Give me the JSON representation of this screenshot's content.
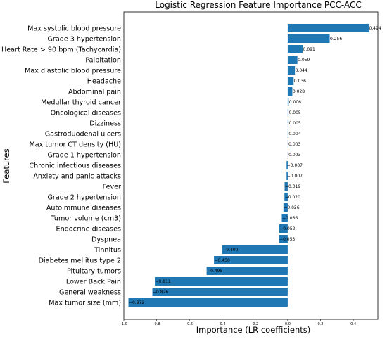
{
  "chart_data": {
    "type": "bar",
    "orientation": "horizontal",
    "title": "Logistic Regression Feature Importance PCC-ACC",
    "xlabel": "Importance (LR coefficients)",
    "ylabel": "Features",
    "xlim": [
      -1.0,
      0.55
    ],
    "xticks": [
      -1.0,
      -0.8,
      -0.6,
      -0.4,
      -0.2,
      0.0,
      0.2,
      0.4
    ],
    "xtick_labels": [
      "-1.0",
      "-0.8",
      "-0.6",
      "-0.4",
      "-0.2",
      "0.0",
      "0.2",
      "0.4"
    ],
    "bar_color": "#1f77b4",
    "grid": false,
    "categories": [
      "Max systolic blood pressure",
      "Grade 3 hypertension",
      "Heart Rate > 90 bpm (Tachycardia)",
      "Palpitation",
      "Max diastolic blood pressure",
      "Headache",
      "Abdominal pain",
      "Medullar thyroid cancer",
      "Oncological diseases",
      "Dizziness",
      "Gastroduodenal ulcers",
      "Max tumor CT density (HU)",
      "Grade 1 hypertension",
      "Chronic infectious diseases",
      "Anxiety and panic attacks",
      "Fever",
      "Grade 2 hypertension",
      "Autoimmune diseases",
      "Tumor volume (cm3)",
      "Endocrine diseases",
      "Dyspnea",
      "Tinnitus",
      "Diabetes mellitus type 2",
      "Pituitary tumors",
      "Lower Back Pain",
      "General weakness",
      "Max tumor size (mm)"
    ],
    "values": [
      0.494,
      0.256,
      0.091,
      0.059,
      0.044,
      0.036,
      0.028,
      0.006,
      0.005,
      0.005,
      0.004,
      0.003,
      0.003,
      -0.007,
      -0.007,
      -0.019,
      -0.02,
      -0.026,
      -0.036,
      -0.052,
      -0.053,
      -0.4,
      -0.45,
      -0.495,
      -0.811,
      -0.826,
      -0.972
    ],
    "value_labels": [
      "0.494",
      "0.256",
      "0.091",
      "0.059",
      "0.044",
      "0.036",
      "0.028",
      "0.006",
      "0.005",
      "0.005",
      "0.004",
      "0.003",
      "0.003",
      "−0.007",
      "−0.007",
      "−0.019",
      "−0.020",
      "−0.026",
      "−0.036",
      "−0.052",
      "−0.053",
      "−0.400",
      "−0.450",
      "−0.495",
      "−0.811",
      "−0.826",
      "−0.972"
    ]
  }
}
